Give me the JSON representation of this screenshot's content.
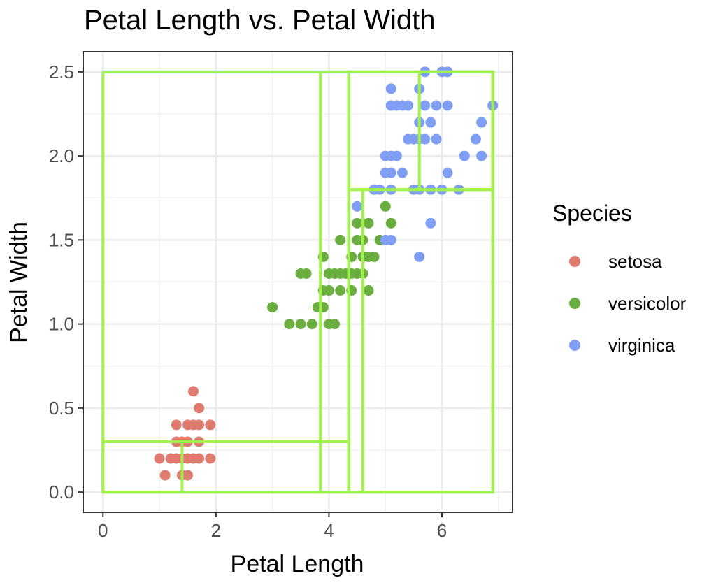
{
  "chart_data": {
    "type": "scatter",
    "title": "Petal Length vs. Petal Width",
    "xlabel": "Petal Length",
    "ylabel": "Petal Width",
    "xlim": [
      -0.35,
      7.25
    ],
    "ylim": [
      -0.12,
      2.62
    ],
    "x_ticks": [
      0,
      2,
      4,
      6
    ],
    "x_tick_labels": [
      "0",
      "2",
      "4",
      "6"
    ],
    "y_ticks": [
      0.0,
      0.5,
      1.0,
      1.5,
      2.0,
      2.5
    ],
    "y_tick_labels": [
      "0.0",
      "0.5",
      "1.0",
      "1.5",
      "2.0",
      "2.5"
    ],
    "grid": true,
    "legend": {
      "title": "Species",
      "placement": "right",
      "entries": [
        {
          "label": "setosa",
          "color": "#E07B6F"
        },
        {
          "label": "versicolor",
          "color": "#6AAE3F"
        },
        {
          "label": "virginica",
          "color": "#7F9EF4"
        }
      ]
    },
    "point_color_default": "#888888",
    "rect_color": "#A0F04E",
    "series": [
      {
        "name": "setosa",
        "color": "#E07B6F",
        "points": [
          [
            1.0,
            0.2
          ],
          [
            1.1,
            0.1
          ],
          [
            1.2,
            0.2
          ],
          [
            1.3,
            0.2
          ],
          [
            1.3,
            0.3
          ],
          [
            1.3,
            0.4
          ],
          [
            1.4,
            0.1
          ],
          [
            1.4,
            0.2
          ],
          [
            1.4,
            0.3
          ],
          [
            1.5,
            0.1
          ],
          [
            1.5,
            0.2
          ],
          [
            1.5,
            0.3
          ],
          [
            1.5,
            0.4
          ],
          [
            1.6,
            0.2
          ],
          [
            1.6,
            0.4
          ],
          [
            1.6,
            0.6
          ],
          [
            1.7,
            0.2
          ],
          [
            1.7,
            0.3
          ],
          [
            1.7,
            0.4
          ],
          [
            1.7,
            0.5
          ],
          [
            1.9,
            0.2
          ],
          [
            1.9,
            0.4
          ]
        ]
      },
      {
        "name": "versicolor",
        "color": "#6AAE3F",
        "points": [
          [
            3.0,
            1.1
          ],
          [
            3.3,
            1.0
          ],
          [
            3.5,
            1.0
          ],
          [
            3.5,
            1.3
          ],
          [
            3.6,
            1.3
          ],
          [
            3.7,
            1.0
          ],
          [
            3.8,
            1.1
          ],
          [
            3.9,
            1.1
          ],
          [
            3.9,
            1.2
          ],
          [
            3.9,
            1.4
          ],
          [
            4.0,
            1.0
          ],
          [
            4.0,
            1.2
          ],
          [
            4.0,
            1.3
          ],
          [
            4.1,
            1.0
          ],
          [
            4.1,
            1.3
          ],
          [
            4.2,
            1.2
          ],
          [
            4.2,
            1.3
          ],
          [
            4.2,
            1.5
          ],
          [
            4.3,
            1.3
          ],
          [
            4.4,
            1.2
          ],
          [
            4.4,
            1.3
          ],
          [
            4.4,
            1.4
          ],
          [
            4.5,
            1.3
          ],
          [
            4.5,
            1.5
          ],
          [
            4.6,
            1.3
          ],
          [
            4.6,
            1.4
          ],
          [
            4.6,
            1.5
          ],
          [
            4.7,
            1.2
          ],
          [
            4.7,
            1.4
          ],
          [
            4.5,
            1.6
          ],
          [
            4.8,
            1.4
          ],
          [
            4.8,
            1.8
          ],
          [
            4.9,
            1.5
          ],
          [
            5.0,
            1.7
          ],
          [
            5.1,
            1.6
          ],
          [
            4.7,
            1.6
          ],
          [
            4.5,
            1.7
          ]
        ]
      },
      {
        "name": "virginica",
        "color": "#7F9EF4",
        "points": [
          [
            4.5,
            1.7
          ],
          [
            4.8,
            1.8
          ],
          [
            4.9,
            1.8
          ],
          [
            5.0,
            1.5
          ],
          [
            5.0,
            1.9
          ],
          [
            5.0,
            2.0
          ],
          [
            5.1,
            1.5
          ],
          [
            5.1,
            1.8
          ],
          [
            5.1,
            1.9
          ],
          [
            5.1,
            2.0
          ],
          [
            5.1,
            2.3
          ],
          [
            5.1,
            2.4
          ],
          [
            5.2,
            2.0
          ],
          [
            5.2,
            2.3
          ],
          [
            5.3,
            1.9
          ],
          [
            5.3,
            2.3
          ],
          [
            5.4,
            2.1
          ],
          [
            5.4,
            2.3
          ],
          [
            5.5,
            1.8
          ],
          [
            5.5,
            2.1
          ],
          [
            5.6,
            1.4
          ],
          [
            5.6,
            1.8
          ],
          [
            5.6,
            2.1
          ],
          [
            5.6,
            2.2
          ],
          [
            5.6,
            2.4
          ],
          [
            5.7,
            2.1
          ],
          [
            5.7,
            2.3
          ],
          [
            5.7,
            2.5
          ],
          [
            5.8,
            1.6
          ],
          [
            5.8,
            1.8
          ],
          [
            5.8,
            2.2
          ],
          [
            5.9,
            2.1
          ],
          [
            5.9,
            2.3
          ],
          [
            6.0,
            1.8
          ],
          [
            6.0,
            2.5
          ],
          [
            6.1,
            1.9
          ],
          [
            6.1,
            2.3
          ],
          [
            6.1,
            2.5
          ],
          [
            6.3,
            1.8
          ],
          [
            6.4,
            2.0
          ],
          [
            6.6,
            2.1
          ],
          [
            6.7,
            2.0
          ],
          [
            6.7,
            2.2
          ],
          [
            6.9,
            2.3
          ]
        ]
      }
    ],
    "rectangles": [
      {
        "x0": 0.0,
        "y0": 0.0,
        "x1": 3.85,
        "y1": 2.5
      },
      {
        "x0": 0.0,
        "y0": 0.0,
        "x1": 4.35,
        "y1": 0.3
      },
      {
        "x0": 1.4,
        "y0": 0.0,
        "x1": 4.35,
        "y1": 0.3
      },
      {
        "x0": 3.85,
        "y0": 0.0,
        "x1": 4.35,
        "y1": 2.5
      },
      {
        "x0": 4.35,
        "y0": 0.0,
        "x1": 6.9,
        "y1": 2.5
      },
      {
        "x0": 4.35,
        "y0": 0.0,
        "x1": 4.6,
        "y1": 1.8
      },
      {
        "x0": 4.6,
        "y0": 0.0,
        "x1": 6.9,
        "y1": 1.8
      },
      {
        "x0": 4.35,
        "y0": 1.8,
        "x1": 6.9,
        "y1": 2.5
      },
      {
        "x0": 5.6,
        "y0": 1.8,
        "x1": 6.9,
        "y1": 2.5
      }
    ]
  }
}
